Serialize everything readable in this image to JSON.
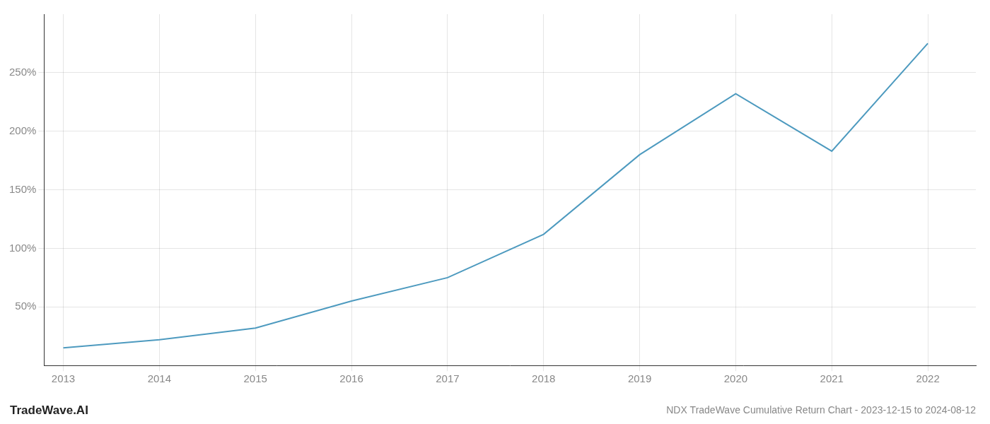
{
  "chart_data": {
    "type": "line",
    "title": "NDX TradeWave Cumulative Return Chart - 2023-12-15 to 2024-08-12",
    "annotations": [
      "TradeWave.AI"
    ],
    "x": [
      2013,
      2014,
      2015,
      2016,
      2017,
      2018,
      2019,
      2020,
      2021,
      2022
    ],
    "values": [
      15,
      22,
      32,
      55,
      75,
      112,
      180,
      232,
      183,
      275
    ],
    "color": "#4d9abf",
    "xlim": [
      2012.8,
      2022.5
    ],
    "xticks": [
      2013,
      2014,
      2015,
      2016,
      2017,
      2018,
      2019,
      2020,
      2021,
      2022
    ],
    "ylim": [
      0,
      300
    ],
    "yticks": [
      {
        "value": 50,
        "label": "50%"
      },
      {
        "value": 100,
        "label": "100%"
      },
      {
        "value": 150,
        "label": "150%"
      },
      {
        "value": 200,
        "label": "200%"
      },
      {
        "value": 250,
        "label": "250%"
      }
    ],
    "grid": true
  }
}
